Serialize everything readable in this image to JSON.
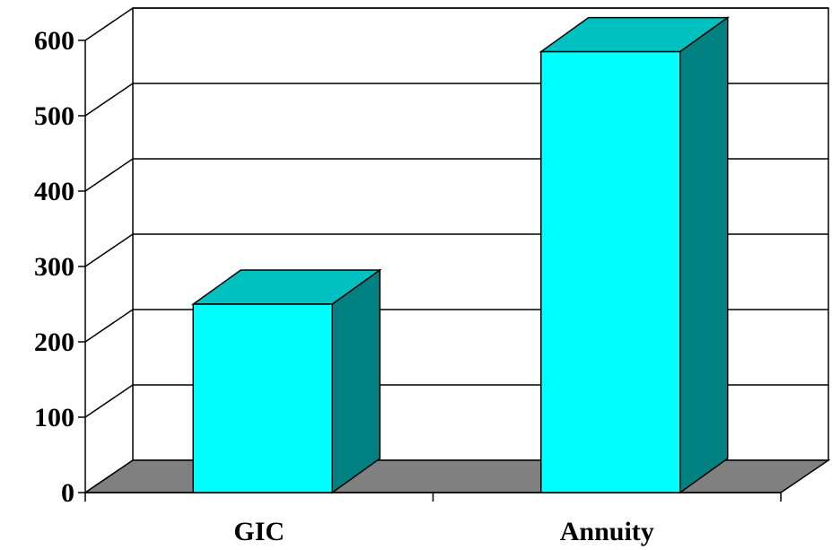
{
  "chart_data": {
    "type": "bar",
    "three_d": true,
    "categories": [
      "GIC",
      "Annuity"
    ],
    "series": [
      {
        "values": [
          250,
          585
        ]
      }
    ],
    "title": "",
    "xlabel": "",
    "ylabel": "",
    "ylim": [
      0,
      600
    ],
    "yticks": [
      "0",
      "100",
      "200",
      "300",
      "400",
      "500",
      "600"
    ],
    "grid": true,
    "legend": "none",
    "colors": {
      "bar_front": "#00FFFF",
      "bar_top": "#00C0C0",
      "bar_side": "#008080",
      "floor": "#808080",
      "outline": "#000000",
      "background": "#FFFFFF"
    }
  }
}
